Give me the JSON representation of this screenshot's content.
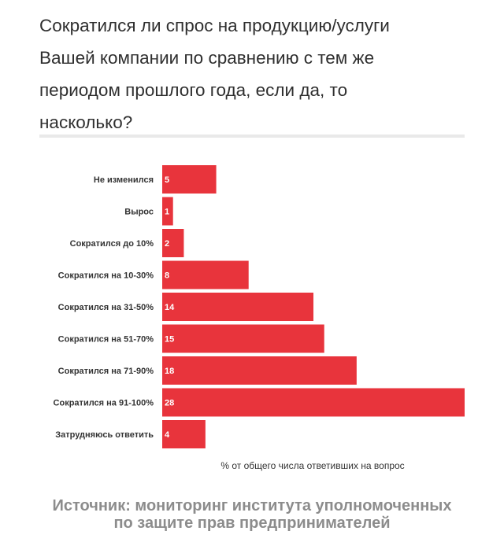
{
  "title_lines": [
    "Сократился ли спрос на продукцию/услуги",
    "Вашей компании по сравнению с тем же",
    "периодом прошлого года, если да, то",
    "насколько?"
  ],
  "source_lines": [
    "Источник: мониторинг института уполномоченных",
    "по защите прав предпринимателей"
  ],
  "colors": {
    "bar": "#e8343c",
    "divider": "#e9e9e9",
    "text": "#333333"
  },
  "chart_data": {
    "type": "bar",
    "orientation": "horizontal",
    "categories": [
      "Не изменился",
      "Вырос",
      "Сократился до 10%",
      "Сократился на 10-30%",
      "Сократился на 31-50%",
      "Сократился на 51-70%",
      "Сократился на 71-90%",
      "Сократился на 91-100%",
      "Затрудняюсь ответить"
    ],
    "values": [
      5,
      1,
      2,
      8,
      14,
      15,
      18,
      28,
      4
    ],
    "xlabel": "% от общего числа ответивших на вопрос",
    "ylabel": "",
    "xlim": [
      0,
      28
    ],
    "grid": false
  }
}
